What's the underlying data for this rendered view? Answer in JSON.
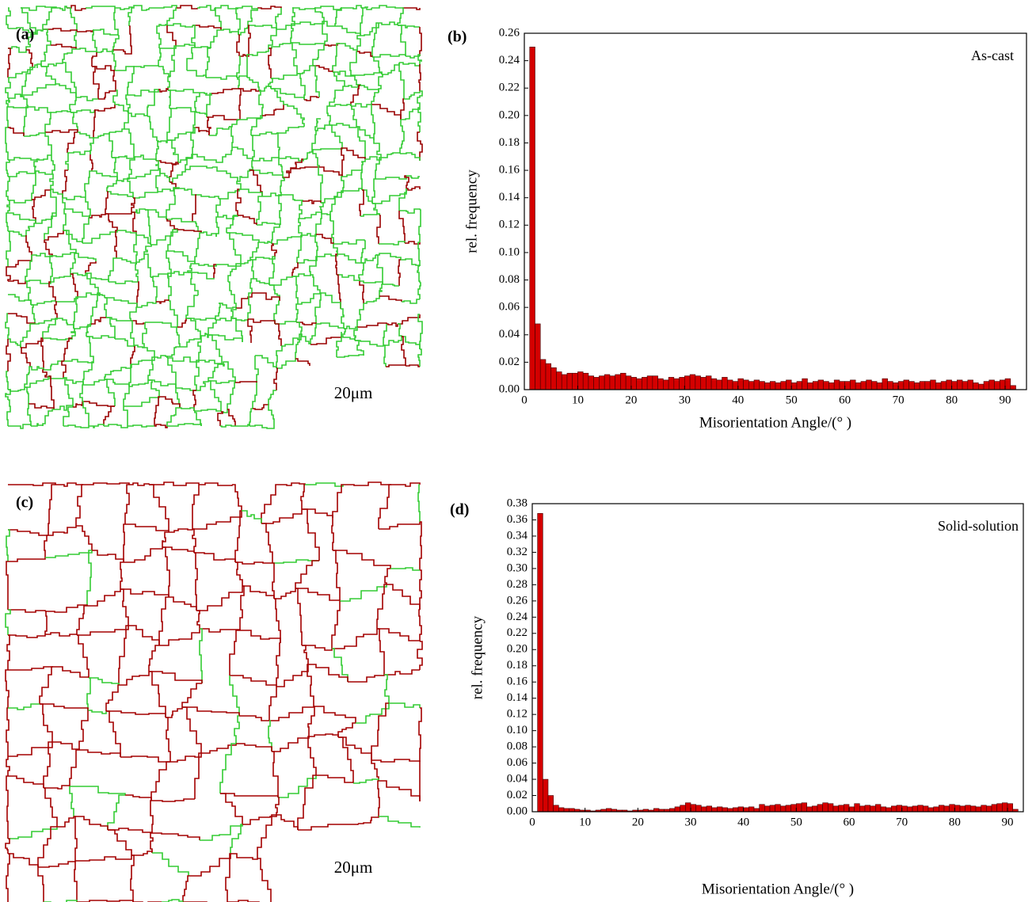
{
  "maps": [
    {
      "label": "(a)",
      "scale_bar": "20μm"
    },
    {
      "label": "(c)",
      "scale_bar": "20μm"
    }
  ],
  "chart_data": [
    {
      "type": "histogram",
      "panel_label": "(b)",
      "annotation": "As-cast",
      "xlabel": "Misorientation Angle/(° )",
      "ylabel": "rel. frequency",
      "color": "#d40000",
      "bins": [
        1,
        2,
        3,
        4,
        5,
        6,
        7,
        8,
        9,
        10,
        11,
        12,
        13,
        14,
        15,
        16,
        17,
        18,
        19,
        20,
        21,
        22,
        23,
        24,
        25,
        26,
        27,
        28,
        29,
        30,
        31,
        32,
        33,
        34,
        35,
        36,
        37,
        38,
        39,
        40,
        41,
        42,
        43,
        44,
        45,
        46,
        47,
        48,
        49,
        50,
        51,
        52,
        53,
        54,
        55,
        56,
        57,
        58,
        59,
        60,
        61,
        62,
        63,
        64,
        65,
        66,
        67,
        68,
        69,
        70,
        71,
        72,
        73,
        74,
        75,
        76,
        77,
        78,
        79,
        80,
        81,
        82,
        83,
        84,
        85,
        86,
        87,
        88,
        89,
        90,
        91,
        92
      ],
      "values": [
        0.25,
        0.048,
        0.022,
        0.019,
        0.016,
        0.013,
        0.011,
        0.012,
        0.012,
        0.013,
        0.012,
        0.01,
        0.009,
        0.01,
        0.011,
        0.01,
        0.011,
        0.012,
        0.01,
        0.009,
        0.008,
        0.009,
        0.01,
        0.01,
        0.008,
        0.007,
        0.009,
        0.008,
        0.009,
        0.01,
        0.011,
        0.01,
        0.009,
        0.01,
        0.008,
        0.007,
        0.009,
        0.007,
        0.006,
        0.008,
        0.007,
        0.006,
        0.007,
        0.006,
        0.005,
        0.006,
        0.005,
        0.006,
        0.007,
        0.005,
        0.006,
        0.008,
        0.005,
        0.006,
        0.007,
        0.006,
        0.005,
        0.007,
        0.006,
        0.006,
        0.007,
        0.005,
        0.006,
        0.007,
        0.006,
        0.005,
        0.008,
        0.006,
        0.005,
        0.006,
        0.007,
        0.006,
        0.005,
        0.006,
        0.006,
        0.007,
        0.005,
        0.006,
        0.007,
        0.006,
        0.007,
        0.006,
        0.007,
        0.005,
        0.004,
        0.006,
        0.007,
        0.006,
        0.007,
        0.008,
        0.003
      ],
      "xlim": [
        0,
        94
      ],
      "ylim": [
        0,
        0.26
      ],
      "xticks": [
        0,
        10,
        20,
        30,
        40,
        50,
        60,
        70,
        80,
        90
      ],
      "yticks": [
        {
          "value": 0,
          "label": "0.00"
        },
        {
          "value": 0.02,
          "label": "0.02"
        },
        {
          "value": 0.04,
          "label": "0.04"
        },
        {
          "value": 0.06,
          "label": "0.06"
        },
        {
          "value": 0.08,
          "label": "0.08"
        },
        {
          "value": 0.1,
          "label": "0.10"
        },
        {
          "value": 0.12,
          "label": "0.12"
        },
        {
          "value": 0.14,
          "label": "0.14"
        },
        {
          "value": 0.16,
          "label": "0.16"
        },
        {
          "value": 0.18,
          "label": "0.18"
        },
        {
          "value": 0.2,
          "label": "0.20"
        },
        {
          "value": 0.22,
          "label": "0.22"
        },
        {
          "value": 0.24,
          "label": "0.24"
        },
        {
          "value": 0.26,
          "label": "0.26"
        }
      ]
    },
    {
      "type": "histogram",
      "panel_label": "(d)",
      "annotation": "Solid-solution",
      "xlabel": "Misorientation Angle/(° )",
      "ylabel": "rel. frequency",
      "color": "#d40000",
      "bins": [
        1,
        2,
        3,
        4,
        5,
        6,
        7,
        8,
        9,
        10,
        11,
        12,
        13,
        14,
        15,
        16,
        17,
        18,
        19,
        20,
        21,
        22,
        23,
        24,
        25,
        26,
        27,
        28,
        29,
        30,
        31,
        32,
        33,
        34,
        35,
        36,
        37,
        38,
        39,
        40,
        41,
        42,
        43,
        44,
        45,
        46,
        47,
        48,
        49,
        50,
        51,
        52,
        53,
        54,
        55,
        56,
        57,
        58,
        59,
        60,
        61,
        62,
        63,
        64,
        65,
        66,
        67,
        68,
        69,
        70,
        71,
        72,
        73,
        74,
        75,
        76,
        77,
        78,
        79,
        80,
        81,
        82,
        83,
        84,
        85,
        86,
        87,
        88,
        89,
        90,
        91,
        92
      ],
      "values": [
        0.368,
        0.04,
        0.02,
        0.008,
        0.005,
        0.004,
        0.004,
        0.003,
        0.002,
        0.002,
        0.001,
        0.002,
        0.003,
        0.004,
        0.003,
        0.002,
        0.002,
        0.001,
        0.002,
        0.002,
        0.003,
        0.002,
        0.004,
        0.003,
        0.003,
        0.004,
        0.006,
        0.008,
        0.011,
        0.009,
        0.008,
        0.006,
        0.007,
        0.005,
        0.006,
        0.005,
        0.004,
        0.005,
        0.006,
        0.005,
        0.006,
        0.004,
        0.009,
        0.007,
        0.008,
        0.009,
        0.007,
        0.008,
        0.009,
        0.01,
        0.011,
        0.006,
        0.007,
        0.009,
        0.011,
        0.01,
        0.007,
        0.008,
        0.009,
        0.006,
        0.01,
        0.007,
        0.008,
        0.007,
        0.009,
        0.006,
        0.005,
        0.007,
        0.008,
        0.007,
        0.006,
        0.007,
        0.008,
        0.007,
        0.005,
        0.006,
        0.008,
        0.007,
        0.009,
        0.008,
        0.007,
        0.008,
        0.007,
        0.006,
        0.008,
        0.007,
        0.009,
        0.01,
        0.011,
        0.01,
        0.003
      ],
      "xlim": [
        0,
        93
      ],
      "ylim": [
        0,
        0.38
      ],
      "xticks": [
        0,
        10,
        20,
        30,
        40,
        50,
        60,
        70,
        80,
        90
      ],
      "yticks": [
        {
          "value": 0,
          "label": "0.00"
        },
        {
          "value": 0.02,
          "label": "0.02"
        },
        {
          "value": 0.04,
          "label": "0.04"
        },
        {
          "value": 0.06,
          "label": "0.06"
        },
        {
          "value": 0.08,
          "label": "0.08"
        },
        {
          "value": 0.1,
          "label": "0.10"
        },
        {
          "value": 0.12,
          "label": "0.12"
        },
        {
          "value": 0.14,
          "label": "0.14"
        },
        {
          "value": 0.16,
          "label": "0.16"
        },
        {
          "value": 0.18,
          "label": "0.18"
        },
        {
          "value": 0.2,
          "label": "0.20"
        },
        {
          "value": 0.22,
          "label": "0.22"
        },
        {
          "value": 0.24,
          "label": "0.24"
        },
        {
          "value": 0.26,
          "label": "0.26"
        },
        {
          "value": 0.28,
          "label": "0.28"
        },
        {
          "value": 0.3,
          "label": "0.30"
        },
        {
          "value": 0.32,
          "label": "0.32"
        },
        {
          "value": 0.34,
          "label": "0.34"
        },
        {
          "value": 0.36,
          "label": "0.36"
        },
        {
          "value": 0.38,
          "label": "0.38"
        }
      ]
    }
  ]
}
